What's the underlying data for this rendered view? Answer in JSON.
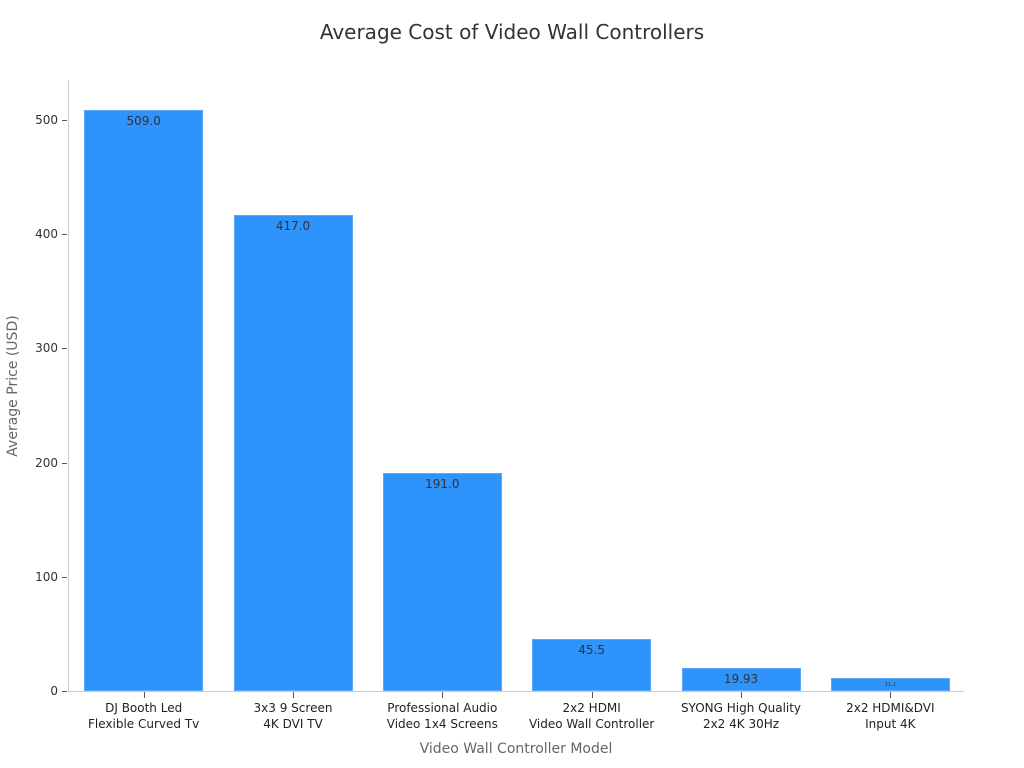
{
  "chart_data": {
    "type": "bar",
    "title": "Average Cost of Video Wall Controllers",
    "xlabel": "Video Wall Controller Model",
    "ylabel": "Average Price (USD)",
    "categories": [
      "DJ Booth Led\nFlexible Curved Tv",
      "3x3 9 Screen\n4K DVI TV",
      "Professional Audio\nVideo 1x4 Screens",
      "2x2 HDMI\nVideo Wall Controller",
      "SYONG High Quality\n2x2 4K 30Hz",
      "2x2 HDMI&DVI\nInput 4K"
    ],
    "values": [
      509.0,
      417.0,
      191.0,
      45.5,
      19.93,
      11.2
    ],
    "value_labels": [
      "509.0",
      "417.0",
      "191.0",
      "45.5",
      "19.93",
      "11.2"
    ],
    "yticks": [
      0,
      100,
      200,
      300,
      400,
      500
    ],
    "ylim": [
      0,
      535
    ],
    "grid": false,
    "legend": null,
    "bar_color": "#2e93fa"
  }
}
